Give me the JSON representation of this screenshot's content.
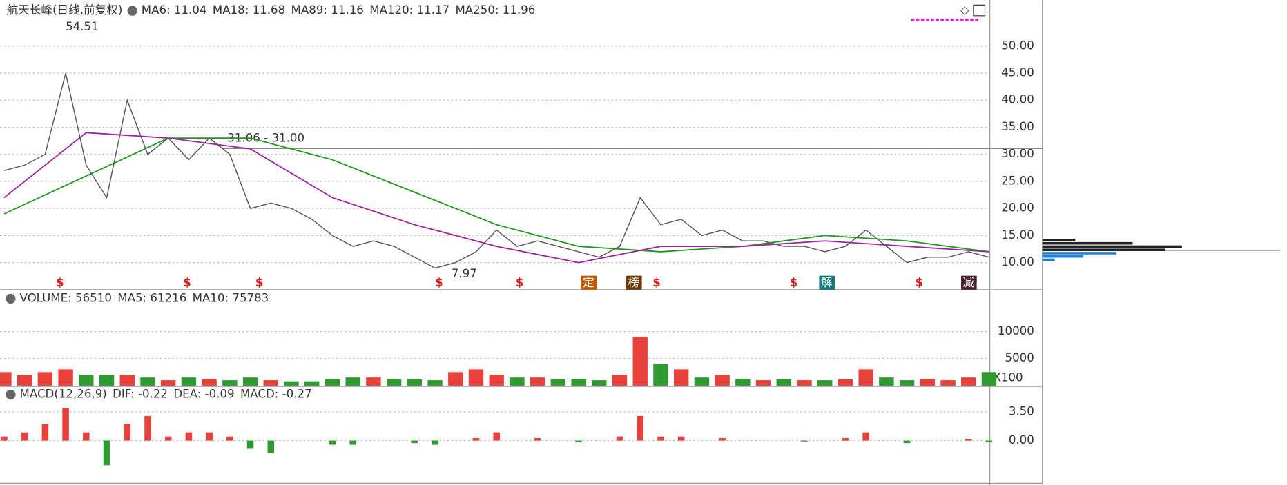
{
  "header": {
    "title": "航天长峰(日线,前复权)",
    "items": [
      {
        "text": "MA6: 11.04",
        "color": "#333333"
      },
      {
        "text": "MA18: 11.68",
        "color": "#1e7fd8"
      },
      {
        "text": "MA89: 11.16",
        "color": "#999999"
      },
      {
        "text": "MA120: 11.17",
        "color": "#a020a0"
      },
      {
        "text": "MA250: 11.96",
        "color": "#1a9a1a"
      }
    ]
  },
  "price_panel": {
    "ylim": [
      5.15,
      58.18
    ],
    "yticks": [
      {
        "value": 10,
        "label": "10.00"
      },
      {
        "value": 15,
        "label": "15.00"
      },
      {
        "value": 20,
        "label": "20.00"
      },
      {
        "value": 25,
        "label": "25.00"
      },
      {
        "value": 30,
        "label": "30.00"
      },
      {
        "value": 35,
        "label": "35.00"
      },
      {
        "value": 40,
        "label": "40.00"
      },
      {
        "value": 45,
        "label": "45.00"
      },
      {
        "value": 50,
        "label": "50.00"
      }
    ],
    "close": [
      27,
      28,
      30,
      45,
      28,
      22,
      40,
      30,
      33,
      29,
      33,
      30,
      20,
      21,
      20,
      18,
      15,
      13,
      14,
      13,
      11,
      9,
      10,
      12,
      16,
      13,
      14,
      13,
      12,
      11,
      13,
      22,
      17,
      18,
      15,
      16,
      14,
      14,
      13,
      13,
      12,
      13,
      16,
      13,
      10,
      11,
      11,
      12,
      11
    ],
    "ma120": [
      22,
      34,
      33,
      31,
      22,
      17,
      13,
      10,
      13,
      13,
      14,
      13,
      12
    ],
    "ma250": [
      19,
      26,
      33,
      33,
      29,
      23,
      17,
      13,
      12,
      13,
      15,
      14,
      12
    ],
    "high_label": "54.51",
    "low_label": "7.97",
    "level": 31.06,
    "level_label": "31.06 - 31.00",
    "markers": [
      "$",
      "$",
      "$",
      "$",
      "$",
      "定",
      "榜",
      "$",
      "$",
      "解",
      "$",
      "减"
    ]
  },
  "volume_panel": {
    "items": [
      {
        "text": "VOLUME: 56510",
        "color": "#333333"
      },
      {
        "text": "MA5: 61216",
        "color": "#333333"
      },
      {
        "text": "MA10: 75783",
        "color": "#1e7fd8"
      }
    ],
    "ylim": [
      0,
      16970
    ],
    "yticks": [
      5000,
      10000
    ],
    "unit_label": "X100",
    "values": [
      2500,
      2000,
      2500,
      3000,
      2000,
      2000,
      2000,
      1500,
      1000,
      1500,
      1200,
      1000,
      1500,
      1000,
      800,
      800,
      1200,
      1500,
      1500,
      1200,
      1200,
      1000,
      2500,
      3000,
      2000,
      1500,
      1500,
      1200,
      1200,
      1000,
      2000,
      9000,
      4000,
      3000,
      1500,
      2000,
      1200,
      1000,
      1200,
      1000,
      1000,
      1200,
      3000,
      1500,
      1000,
      1200,
      1000,
      1500,
      2500
    ]
  },
  "macd_panel": {
    "items": [
      {
        "text": "MACD(12,26,9)",
        "color": "#333333"
      },
      {
        "text": "DIF: -0.22",
        "color": "#333333"
      },
      {
        "text": "DEA: -0.09",
        "color": "#1e7fd8"
      },
      {
        "text": "MACD: -0.27",
        "color": "#999999"
      }
    ],
    "ylim": [
      -5.3,
      6.2
    ],
    "yticks": [
      {
        "value": 0,
        "label": "0.00"
      },
      {
        "value": 3.5,
        "label": "3.50"
      }
    ],
    "values": [
      0.5,
      1,
      2,
      4,
      1,
      -3,
      2,
      3,
      0.5,
      1,
      1,
      0.5,
      -1,
      -1.5,
      0,
      0,
      -0.5,
      -0.5,
      0,
      0,
      -0.3,
      -0.5,
      0,
      0.3,
      1,
      0,
      0.3,
      0,
      -0.2,
      0,
      0.5,
      3,
      0.5,
      0.5,
      0,
      0.3,
      0,
      0,
      0,
      -0.1,
      0,
      0.3,
      1,
      0,
      -0.3,
      0,
      0,
      0.2,
      -0.2
    ]
  }
}
